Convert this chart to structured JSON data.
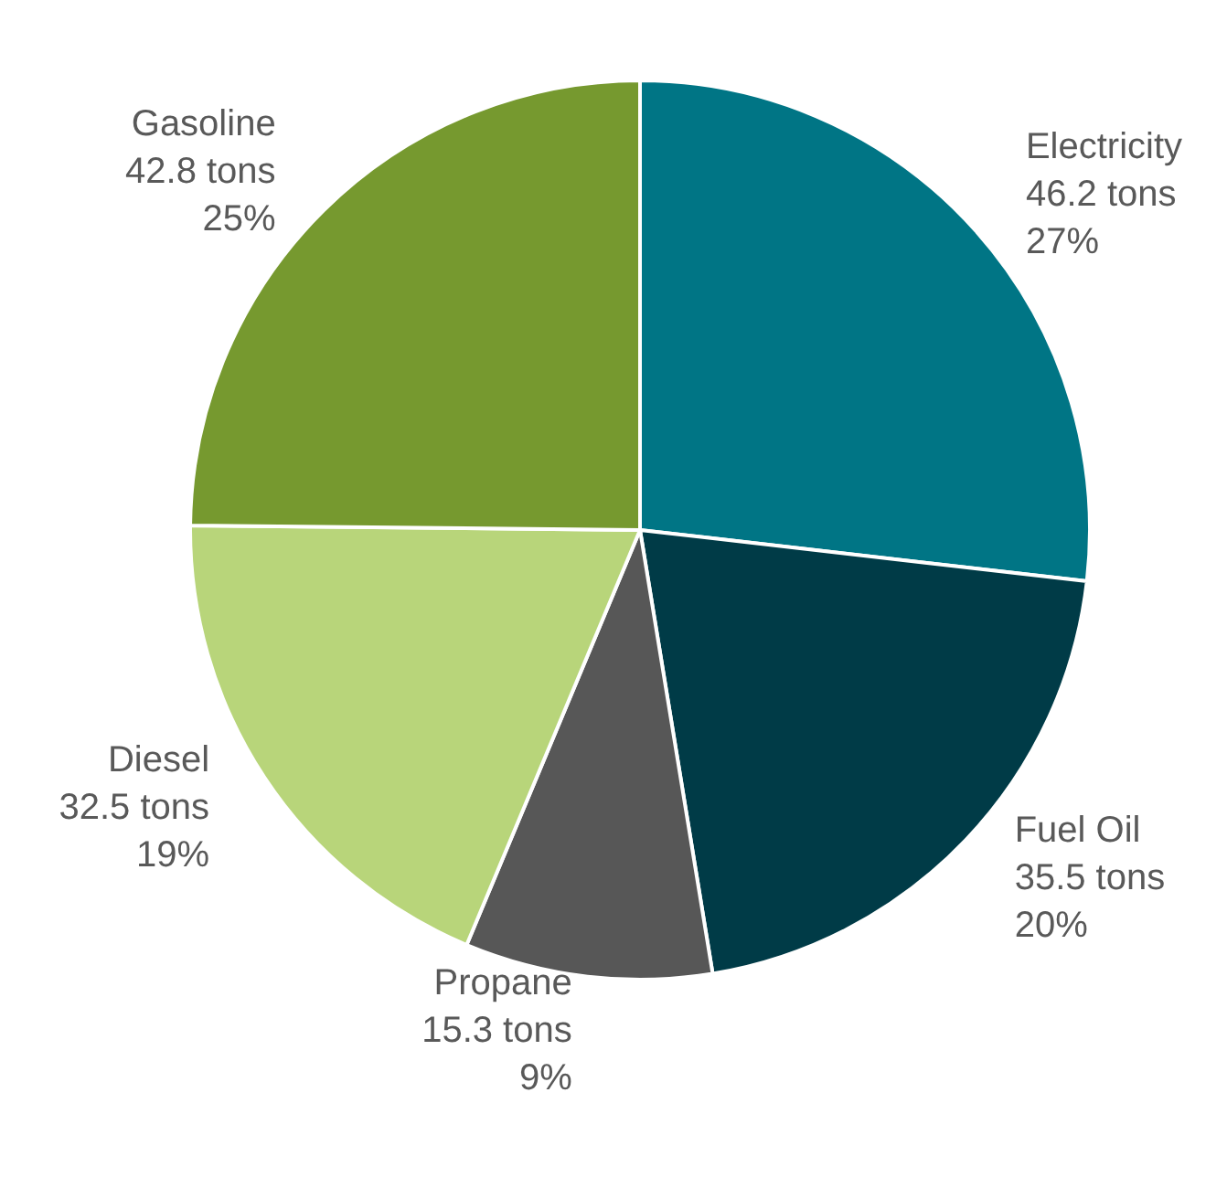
{
  "chart_data": {
    "type": "pie",
    "categories": [
      "Electricity",
      "Fuel Oil",
      "Propane",
      "Diesel",
      "Gasoline"
    ],
    "values": [
      46.2,
      35.5,
      15.3,
      32.5,
      42.8
    ],
    "value_labels": [
      "46.2 tons\n27%",
      "35.5 tons\n20%",
      "15.3 tons\n9%",
      "32.5 tons\n19%",
      "42.8 tons\n25%"
    ],
    "colors": [
      "#007585",
      "#003b47",
      "#575757",
      "#b8d57a",
      "#76992f"
    ],
    "legend": false
  }
}
